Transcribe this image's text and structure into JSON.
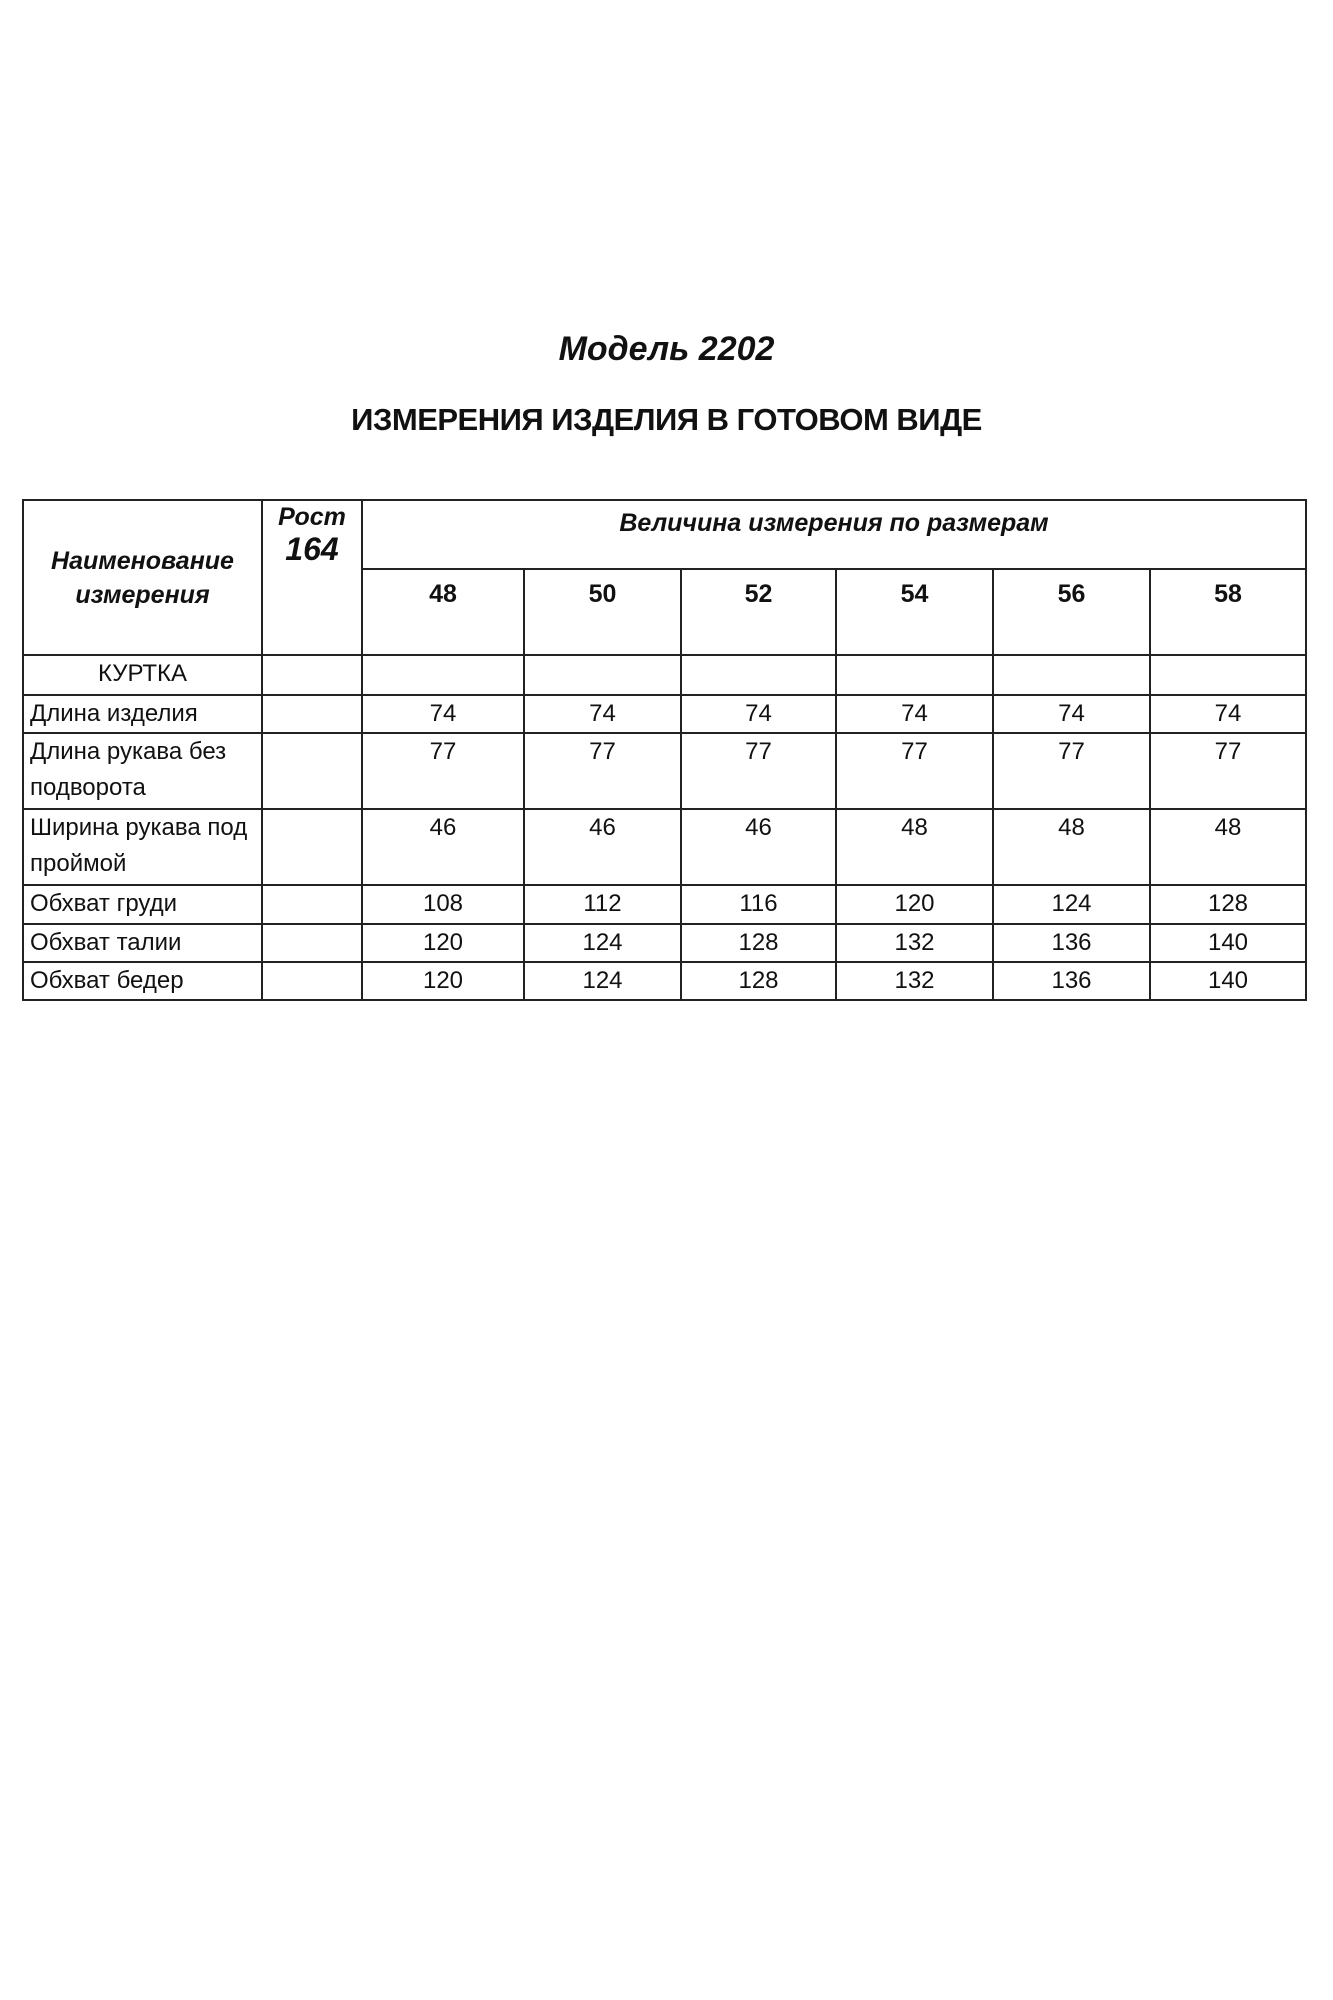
{
  "title": "Модель 2202",
  "heading": "ИЗМЕРЕНИЯ ИЗДЕЛИЯ В ГОТОВОМ ВИДЕ",
  "table": {
    "name_header": "Наименование измерения",
    "height_label": "Рост",
    "height_value": "164",
    "sizes_header": "Величина измерения по размерам",
    "sizes": [
      "48",
      "50",
      "52",
      "54",
      "56",
      "58"
    ],
    "section": "КУРТКА",
    "rows": [
      {
        "name": "Длина изделия",
        "values": [
          "74",
          "74",
          "74",
          "74",
          "74",
          "74"
        ]
      },
      {
        "name": "Длина рукава без подворота",
        "values": [
          "77",
          "77",
          "77",
          "77",
          "77",
          "77"
        ]
      },
      {
        "name": "Ширина рукава под проймой",
        "values": [
          "46",
          "46",
          "46",
          "48",
          "48",
          "48"
        ]
      },
      {
        "name": "Обхват груди",
        "values": [
          "108",
          "112",
          "116",
          "120",
          "124",
          "128"
        ]
      },
      {
        "name": "Обхват талии",
        "values": [
          "120",
          "124",
          "128",
          "132",
          "136",
          "140"
        ]
      },
      {
        "name": "Обхват бедер",
        "values": [
          "120",
          "124",
          "128",
          "132",
          "136",
          "140"
        ]
      }
    ]
  }
}
